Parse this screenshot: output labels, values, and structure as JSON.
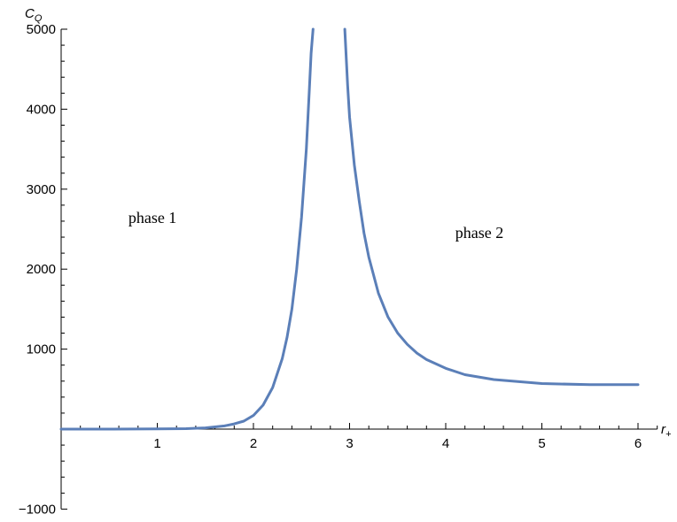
{
  "chart_data": {
    "type": "line",
    "title": "",
    "xlabel": {
      "main": "r",
      "sub": "+"
    },
    "ylabel": {
      "main": "C",
      "sub": "Q"
    },
    "xlim": [
      0,
      6.2
    ],
    "ylim": [
      -1000,
      5000
    ],
    "x_ticks": [
      1,
      2,
      3,
      4,
      5,
      6
    ],
    "x_tick_labels": [
      "1",
      "2",
      "3",
      "4",
      "5",
      "6"
    ],
    "y_ticks": [
      -1000,
      1000,
      2000,
      3000,
      4000,
      5000
    ],
    "y_tick_labels": [
      "−1000",
      "1000",
      "2000",
      "3000",
      "4000",
      "5000"
    ],
    "grid": false,
    "color": "#5b7fb8",
    "series": [
      {
        "name": "",
        "x": [
          0.0,
          0.5,
          1.0,
          1.3,
          1.5,
          1.7,
          1.8,
          1.9,
          2.0,
          2.1,
          2.2,
          2.3,
          2.35,
          2.4,
          2.45,
          2.5,
          2.55,
          2.58,
          2.6,
          2.62,
          2.95,
          2.98,
          3.0,
          3.05,
          3.1,
          3.15,
          3.2,
          3.3,
          3.4,
          3.5,
          3.6,
          3.7,
          3.8,
          4.0,
          4.2,
          4.5,
          5.0,
          5.5,
          6.0
        ],
        "y": [
          0,
          0,
          2,
          5,
          15,
          40,
          65,
          100,
          170,
          300,
          520,
          880,
          1150,
          1500,
          2000,
          2650,
          3500,
          4200,
          4700,
          5000,
          5000,
          4300,
          3900,
          3300,
          2850,
          2450,
          2150,
          1700,
          1400,
          1200,
          1060,
          950,
          870,
          760,
          680,
          620,
          570,
          555,
          555
        ]
      }
    ],
    "annotations": [
      {
        "text": "phase 1",
        "x": 0.95,
        "y": 2580
      },
      {
        "text": "phase 2",
        "x": 4.35,
        "y": 2390
      }
    ]
  }
}
